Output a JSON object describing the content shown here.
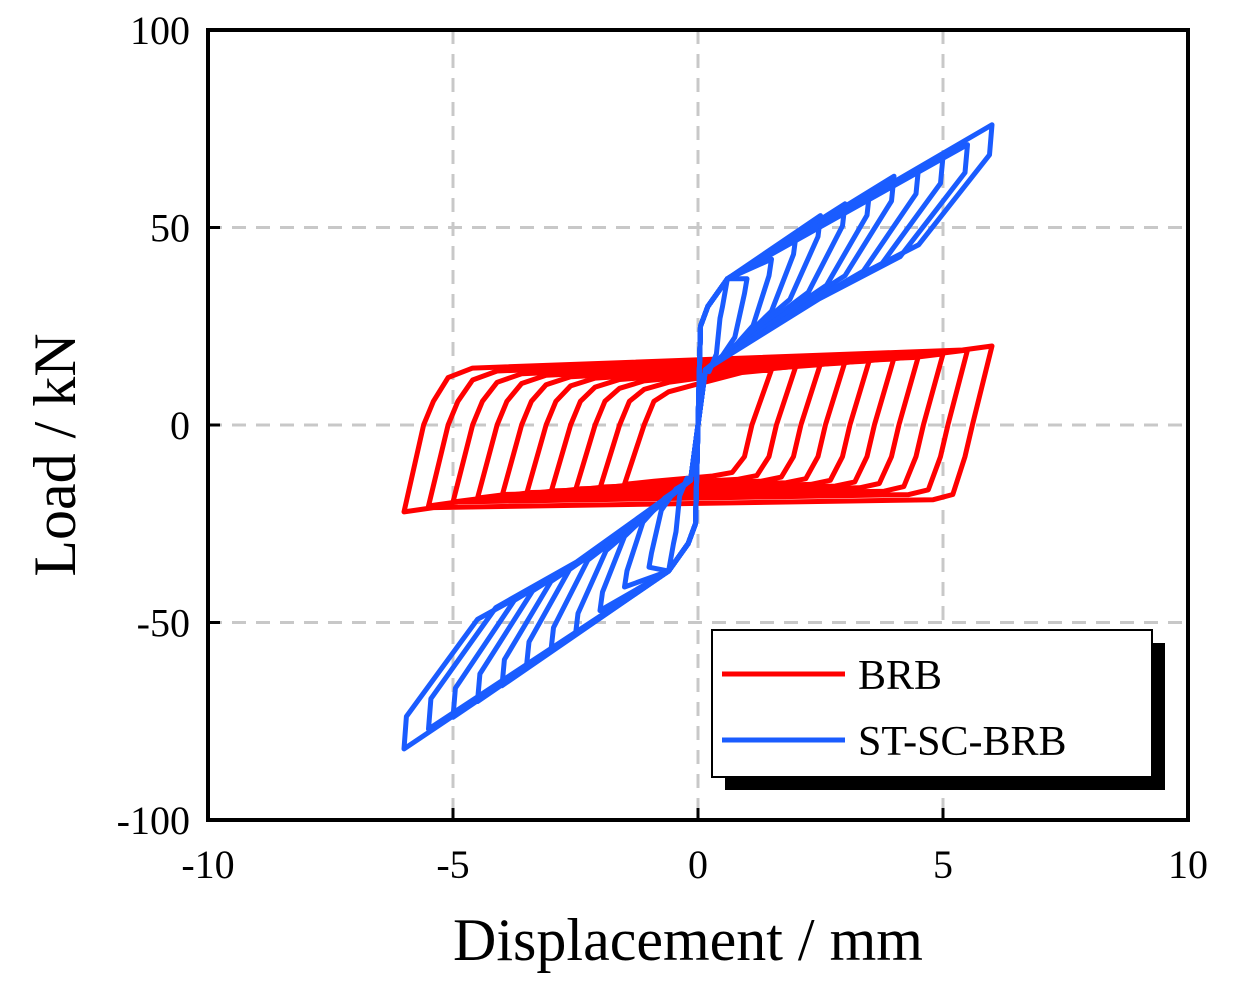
{
  "chart_data": {
    "type": "line",
    "xlabel": "Displacement / mm",
    "ylabel": "Load / kN",
    "xlim": [
      -10,
      10
    ],
    "ylim": [
      -100,
      100
    ],
    "xticks": [
      -10,
      -5,
      0,
      5,
      10
    ],
    "yticks": [
      -100,
      -50,
      0,
      50,
      100
    ],
    "xtick_labels": [
      "-10",
      "-5",
      "0",
      "5",
      "10"
    ],
    "ytick_labels": [
      "-100",
      "-50",
      "0",
      "50",
      "100"
    ],
    "grid": true,
    "legend_position": "bottom-right",
    "series": [
      {
        "name": "BRB",
        "color": "#ff0000",
        "loops": [
          {
            "amp": 1.5,
            "fmax": 14,
            "fmin": -15
          },
          {
            "amp": 2.0,
            "fmax": 15,
            "fmin": -16
          },
          {
            "amp": 2.5,
            "fmax": 15.5,
            "fmin": -16.5
          },
          {
            "amp": 3.0,
            "fmax": 16,
            "fmin": -17
          },
          {
            "amp": 3.5,
            "fmax": 16.5,
            "fmin": -17.5
          },
          {
            "amp": 4.0,
            "fmax": 17,
            "fmin": -18
          },
          {
            "amp": 4.5,
            "fmax": 17.5,
            "fmin": -18.5
          },
          {
            "amp": 5.0,
            "fmax": 18,
            "fmin": -19.5
          },
          {
            "amp": 5.5,
            "fmax": 19,
            "fmin": -20.5
          },
          {
            "amp": 6.0,
            "fmax": 20,
            "fmin": -22
          }
        ]
      },
      {
        "name": "ST-SC-BRB",
        "color": "#1a5cff",
        "loops": [
          {
            "amp": 0.5,
            "fmax": 30,
            "fmin": -30
          },
          {
            "amp": 1.0,
            "fmax": 37,
            "fmin": -36
          },
          {
            "amp": 1.5,
            "fmax": 42,
            "fmin": -41
          },
          {
            "amp": 2.0,
            "fmax": 48,
            "fmin": -47
          },
          {
            "amp": 2.5,
            "fmax": 53,
            "fmin": -53
          },
          {
            "amp": 3.0,
            "fmax": 56,
            "fmin": -57
          },
          {
            "amp": 3.5,
            "fmax": 59,
            "fmin": -61
          },
          {
            "amp": 4.0,
            "fmax": 63,
            "fmin": -66
          },
          {
            "amp": 4.5,
            "fmax": 65,
            "fmin": -70
          },
          {
            "amp": 5.0,
            "fmax": 68,
            "fmin": -74
          },
          {
            "amp": 5.5,
            "fmax": 71,
            "fmin": -77
          },
          {
            "amp": 6.0,
            "fmax": 76,
            "fmin": -82
          }
        ]
      }
    ]
  }
}
